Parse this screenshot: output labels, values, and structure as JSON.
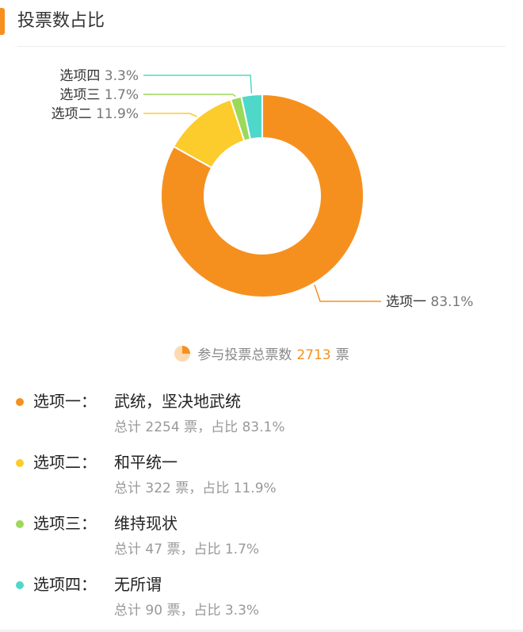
{
  "section": {
    "title": "投票数占比"
  },
  "chart_data": {
    "type": "pie",
    "categories": [
      "选项一",
      "选项二",
      "选项三",
      "选项四"
    ],
    "values": [
      2254,
      322,
      47,
      90
    ],
    "percent_labels": [
      "83.1%",
      "11.9%",
      "1.7%",
      "3.3%"
    ],
    "colors": [
      "#f5901f",
      "#fccb2c",
      "#9cd95b",
      "#4fd8c9"
    ],
    "donut": true,
    "labels_outside": true
  },
  "total": {
    "icon": "pie-chart-icon",
    "prefix": "参与投票总票数",
    "value": "2713",
    "suffix": "票"
  },
  "options": [
    {
      "label": "选项一：",
      "text": "武统，坚决地武统",
      "stats": "总计 2254 票，占比 83.1%",
      "color": "#f5901f"
    },
    {
      "label": "选项二：",
      "text": "和平统一",
      "stats": "总计 322 票，占比 11.9%",
      "color": "#fccb2c"
    },
    {
      "label": "选项三：",
      "text": "维持现状",
      "stats": "总计 47 票，占比 1.7%",
      "color": "#9cd95b"
    },
    {
      "label": "选项四：",
      "text": "无所谓",
      "stats": "总计 90 票，占比 3.3%",
      "color": "#4fd8c9"
    }
  ]
}
